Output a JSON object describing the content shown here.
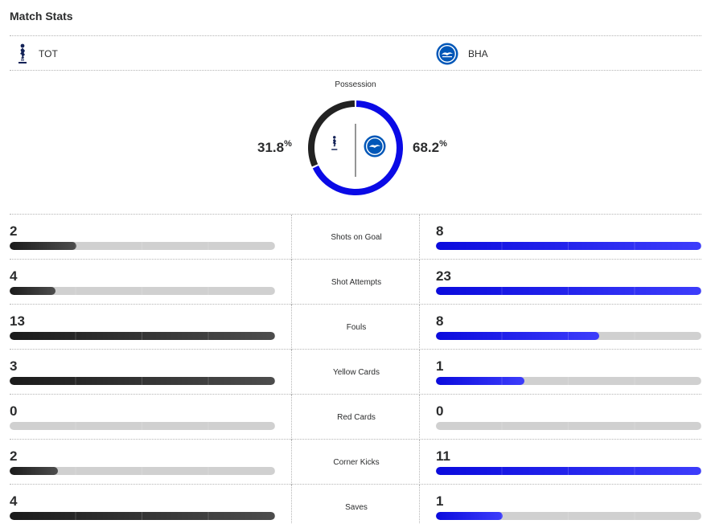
{
  "title": "Match Stats",
  "teams": {
    "home": {
      "abbr": "TOT",
      "color": "#222222",
      "logo": "tottenham-crest-icon"
    },
    "away": {
      "abbr": "BHA",
      "color": "#0a0ae6",
      "logo": "brighton-crest-icon"
    }
  },
  "possession": {
    "label": "Possession",
    "home": {
      "value": "31.8",
      "fraction": 0.318
    },
    "away": {
      "value": "68.2",
      "fraction": 0.682
    },
    "unit": "%"
  },
  "stats": [
    {
      "label": "Shots on Goal",
      "home": {
        "value": "2",
        "fill": 0.25
      },
      "away": {
        "value": "8",
        "fill": 1.0
      }
    },
    {
      "label": "Shot Attempts",
      "home": {
        "value": "4",
        "fill": 0.174
      },
      "away": {
        "value": "23",
        "fill": 1.0
      }
    },
    {
      "label": "Fouls",
      "home": {
        "value": "13",
        "fill": 1.0
      },
      "away": {
        "value": "8",
        "fill": 0.615
      }
    },
    {
      "label": "Yellow Cards",
      "home": {
        "value": "3",
        "fill": 1.0
      },
      "away": {
        "value": "1",
        "fill": 0.333
      }
    },
    {
      "label": "Red Cards",
      "home": {
        "value": "0",
        "fill": 0
      },
      "away": {
        "value": "0",
        "fill": 0
      }
    },
    {
      "label": "Corner Kicks",
      "home": {
        "value": "2",
        "fill": 0.182
      },
      "away": {
        "value": "11",
        "fill": 1.0
      }
    },
    {
      "label": "Saves",
      "home": {
        "value": "4",
        "fill": 1.0
      },
      "away": {
        "value": "1",
        "fill": 0.25
      }
    }
  ]
}
